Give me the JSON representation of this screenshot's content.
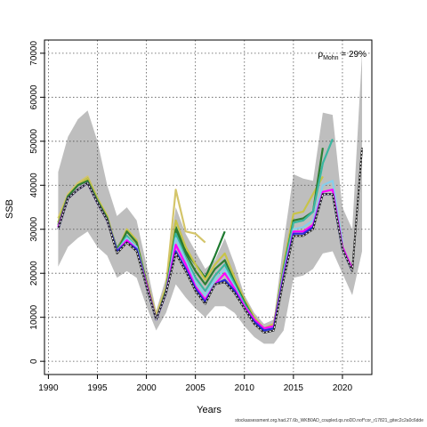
{
  "chart_data": {
    "type": "line",
    "title": "",
    "xlabel": "Years",
    "ylabel": "SSB",
    "xlim": [
      1990,
      2022
    ],
    "ylim": [
      0,
      70000
    ],
    "x_ticks": [
      1990,
      1995,
      2000,
      2005,
      2010,
      2015,
      2020
    ],
    "y_ticks": [
      0,
      10000,
      20000,
      30000,
      40000,
      50000,
      60000,
      70000
    ],
    "grid": "dotted",
    "annotation": {
      "symbol": "ρ",
      "subscript": "Mohn",
      "text": " = 29%"
    },
    "confidence_band": {
      "x": [
        1991,
        1992,
        1993,
        1994,
        1995,
        1996,
        1997,
        1998,
        1999,
        2000,
        2001,
        2002,
        2003,
        2004,
        2005,
        2006,
        2007,
        2008,
        2009,
        2010,
        2011,
        2012,
        2013,
        2014,
        2015,
        2016,
        2017,
        2018,
        2019,
        2020,
        2021,
        2022
      ],
      "upper": [
        43000,
        51000,
        55000,
        57000,
        50000,
        40000,
        33000,
        35000,
        32000,
        22000,
        11500,
        19000,
        35000,
        29000,
        25000,
        21000,
        23000,
        28000,
        22000,
        15000,
        11000,
        8500,
        9500,
        27000,
        42500,
        41500,
        41000,
        56500,
        56000,
        35000,
        30000,
        70000
      ],
      "lower": [
        21500,
        26000,
        28000,
        29500,
        26000,
        24000,
        19000,
        20500,
        19000,
        12500,
        7000,
        11000,
        17500,
        14500,
        12000,
        10000,
        12500,
        12500,
        11000,
        8000,
        5500,
        4000,
        4000,
        7000,
        19000,
        19500,
        21000,
        24500,
        25000,
        20000,
        15000,
        25000
      ]
    },
    "series": [
      {
        "color": "#d4c56a",
        "x": [
          1991,
          1992,
          1993,
          1994,
          1995,
          1996,
          1997,
          1998,
          1999,
          2000,
          2001,
          2002,
          2003,
          2004,
          2005,
          2006
        ],
        "values": [
          32500,
          38000,
          40500,
          42000,
          37000,
          33000,
          25000,
          28500,
          26500,
          18500,
          10500,
          17000,
          39000,
          29500,
          29000,
          27000
        ]
      },
      {
        "color": "#1e7a30",
        "x": [
          1991,
          1992,
          1993,
          1994,
          1995,
          1996,
          1997,
          1998,
          1999,
          2000,
          2001,
          2002,
          2003,
          2004,
          2005,
          2006,
          2007,
          2008
        ],
        "values": [
          31500,
          37500,
          40000,
          41500,
          37000,
          32500,
          25500,
          29500,
          27000,
          18000,
          9500,
          16000,
          30500,
          25000,
          22000,
          19000,
          24000,
          29500
        ]
      },
      {
        "color": "#c8c448",
        "x": [
          1991,
          1992,
          1993,
          1994,
          1995,
          1996,
          1997,
          1998,
          1999,
          2000,
          2001,
          2002,
          2003,
          2004,
          2005,
          2006,
          2007,
          2008,
          2009,
          2010,
          2011,
          2012,
          2013,
          2014,
          2015,
          2016,
          2017,
          2018
        ],
        "values": [
          31500,
          37500,
          40000,
          41500,
          37000,
          33000,
          25000,
          30000,
          27500,
          18000,
          9500,
          16500,
          32000,
          26000,
          22000,
          18500,
          22000,
          24500,
          19000,
          14000,
          10000,
          7500,
          8500,
          22000,
          33500,
          34000,
          38000,
          42000
        ]
      },
      {
        "color": "#2e7d32",
        "x": [
          1991,
          1992,
          1993,
          1994,
          1995,
          1996,
          1997,
          1998,
          1999,
          2000,
          2001,
          2002,
          2003,
          2004,
          2005,
          2006,
          2007,
          2008,
          2009,
          2010,
          2011,
          2012,
          2013,
          2014,
          2015,
          2016,
          2017,
          2018
        ],
        "values": [
          31000,
          37500,
          40000,
          41000,
          36500,
          32500,
          25000,
          29500,
          27000,
          18000,
          9500,
          16000,
          30000,
          24500,
          20500,
          17500,
          21000,
          23000,
          18000,
          13500,
          9500,
          7000,
          8000,
          21000,
          32000,
          32500,
          34000,
          48500
        ]
      },
      {
        "color": "#3ab7a0",
        "x": [
          1991,
          1992,
          1993,
          1994,
          1995,
          1996,
          1997,
          1998,
          1999,
          2000,
          2001,
          2002,
          2003,
          2004,
          2005,
          2006,
          2007,
          2008,
          2009,
          2010,
          2011,
          2012,
          2013,
          2014,
          2015,
          2016,
          2017,
          2018,
          2019
        ],
        "values": [
          30500,
          37000,
          39000,
          40500,
          36000,
          32000,
          25000,
          28500,
          26000,
          17500,
          9500,
          15500,
          29000,
          23500,
          19000,
          16000,
          19500,
          22000,
          17500,
          13000,
          9500,
          7000,
          8000,
          20500,
          31500,
          32000,
          34000,
          45000,
          50500
        ]
      },
      {
        "color": "#87ceeb",
        "x": [
          1991,
          1992,
          1993,
          1994,
          1995,
          1996,
          1997,
          1998,
          1999,
          2000,
          2001,
          2002,
          2003,
          2004,
          2005,
          2006,
          2007,
          2008,
          2009,
          2010,
          2011,
          2012,
          2013,
          2014,
          2015,
          2016,
          2017,
          2018,
          2019,
          2020
        ],
        "values": [
          30500,
          37000,
          39000,
          40500,
          36000,
          32000,
          25000,
          28000,
          26000,
          17500,
          9500,
          15500,
          28000,
          23000,
          18000,
          15000,
          18500,
          21000,
          17000,
          12500,
          9500,
          7000,
          8000,
          20000,
          30000,
          30500,
          32000,
          40000,
          41000,
          27000
        ]
      },
      {
        "color": "#ff00ff",
        "x": [
          1991,
          1992,
          1993,
          1994,
          1995,
          1996,
          1997,
          1998,
          1999,
          2000,
          2001,
          2002,
          2003,
          2004,
          2005,
          2006,
          2007,
          2008,
          2009,
          2010,
          2011,
          2012,
          2013,
          2014,
          2015,
          2016,
          2017,
          2018,
          2019,
          2020,
          2021
        ],
        "values": [
          30500,
          37000,
          39000,
          40500,
          36000,
          32000,
          25000,
          27500,
          25500,
          17500,
          9500,
          15500,
          26500,
          22000,
          17000,
          14000,
          17500,
          20000,
          16500,
          12500,
          9500,
          7500,
          8000,
          19500,
          29500,
          29500,
          31000,
          38500,
          39000,
          26000,
          21000
        ]
      },
      {
        "color": "#2a2adb",
        "x": [
          1991,
          1992,
          1993,
          1994,
          1995,
          1996,
          1997,
          1998,
          1999,
          2000,
          2001,
          2002,
          2003,
          2004,
          2005,
          2006,
          2007,
          2008,
          2009,
          2010,
          2011,
          2012,
          2013,
          2014,
          2015,
          2016,
          2017,
          2018,
          2019,
          2020,
          2021
        ],
        "values": [
          30000,
          37000,
          39000,
          40500,
          36000,
          32000,
          25000,
          27000,
          25500,
          17000,
          9500,
          15500,
          25000,
          21000,
          16500,
          13500,
          17500,
          18500,
          16000,
          12000,
          9000,
          7000,
          7500,
          19000,
          29000,
          29000,
          30500,
          38000,
          38000,
          25500,
          20500
        ]
      },
      {
        "color": "#222222",
        "x": [
          1991,
          1992,
          1993,
          1994,
          1995,
          1996,
          1997,
          1998,
          1999,
          2000,
          2001,
          2002,
          2003,
          2004,
          2005,
          2006,
          2007,
          2008,
          2009,
          2010,
          2011,
          2012,
          2013,
          2014,
          2015,
          2016,
          2017,
          2018,
          2019,
          2020,
          2021,
          2022
        ],
        "values": [
          30000,
          37000,
          39000,
          40500,
          36000,
          32000,
          24500,
          27000,
          25000,
          17000,
          9500,
          15500,
          24500,
          20500,
          16000,
          13000,
          17500,
          18000,
          15500,
          12000,
          8500,
          6500,
          7000,
          18500,
          28500,
          28500,
          30000,
          38000,
          38000,
          25500,
          20500,
          48500
        ]
      }
    ]
  },
  "footnote": "stockassessment.org.had.27.6b_WKB0AD_coupled.qs.noDD.nof*cor_r17821_gitec2c2a0c6dde"
}
